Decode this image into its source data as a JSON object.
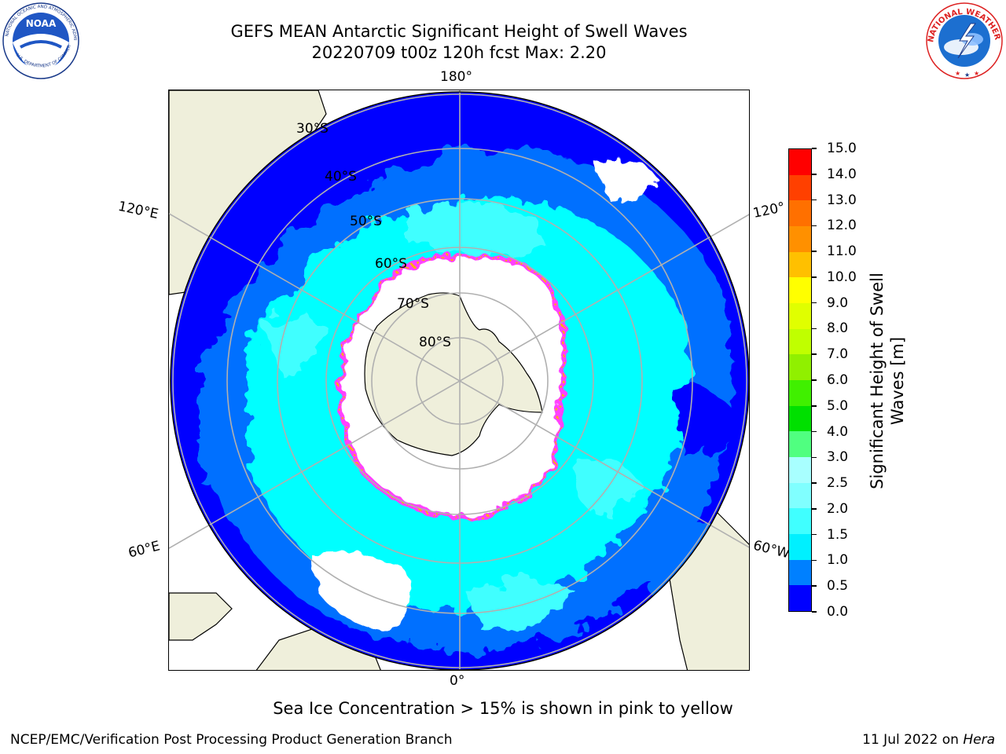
{
  "title": {
    "line1": "GEFS MEAN Antarctic Significant Height of Swell Waves",
    "line2": "20220709 t00z 120h fcst   Max: 2.20"
  },
  "logos": {
    "left": {
      "name": "NOAA",
      "ring_text": "NATIONAL OCEANIC AND ATMOSPHERIC ADMINISTRATION · U.S. DEPARTMENT OF COMMERCE"
    },
    "right": {
      "name": "NATIONAL WEATHER SERVICE"
    }
  },
  "map": {
    "projection": "south-polar-stereographic",
    "lon_labels": {
      "top": "180°",
      "bottom": "0°",
      "upper_left": "120°E",
      "upper_right": "120°",
      "lower_left": "60°E",
      "lower_right": "60°W"
    },
    "lat_labels": [
      "30°S",
      "40°S",
      "50°S",
      "60°S",
      "70°S",
      "80°S"
    ],
    "ocean_deep_color": "#0000ff",
    "ocean_mid_color": "#0070ff",
    "ocean_light_color": "#00ffff",
    "ice_color": "#ffffff",
    "land_color": "#efefdb",
    "ice_edge_colors": [
      "#ff40ff",
      "#ff8080",
      "#ffb000"
    ]
  },
  "colorbar": {
    "label": "Significant Height of Swell Waves [m]",
    "ticks": [
      "0.0",
      "0.5",
      "1.0",
      "1.5",
      "2.0",
      "2.5",
      "3.0",
      "4.0",
      "5.0",
      "6.0",
      "7.0",
      "8.0",
      "9.0",
      "10.0",
      "11.0",
      "12.0",
      "13.0",
      "14.0",
      "15.0"
    ],
    "colors": [
      "#0000ff",
      "#0080ff",
      "#00f0ff",
      "#40ffff",
      "#80ffff",
      "#a8ffff",
      "#50ff80",
      "#00e000",
      "#40f000",
      "#90f000",
      "#c0ff00",
      "#e0ff00",
      "#ffff00",
      "#ffc000",
      "#ff9000",
      "#ff7000",
      "#ff4000",
      "#ff0000"
    ]
  },
  "footnote": "Sea Ice Concentration > 15% is shown in pink to yellow",
  "footer": {
    "left": "NCEP/EMC/Verification Post Processing Product Generation Branch",
    "right_date": "11 Jul 2022 on ",
    "right_host": "Hera"
  }
}
